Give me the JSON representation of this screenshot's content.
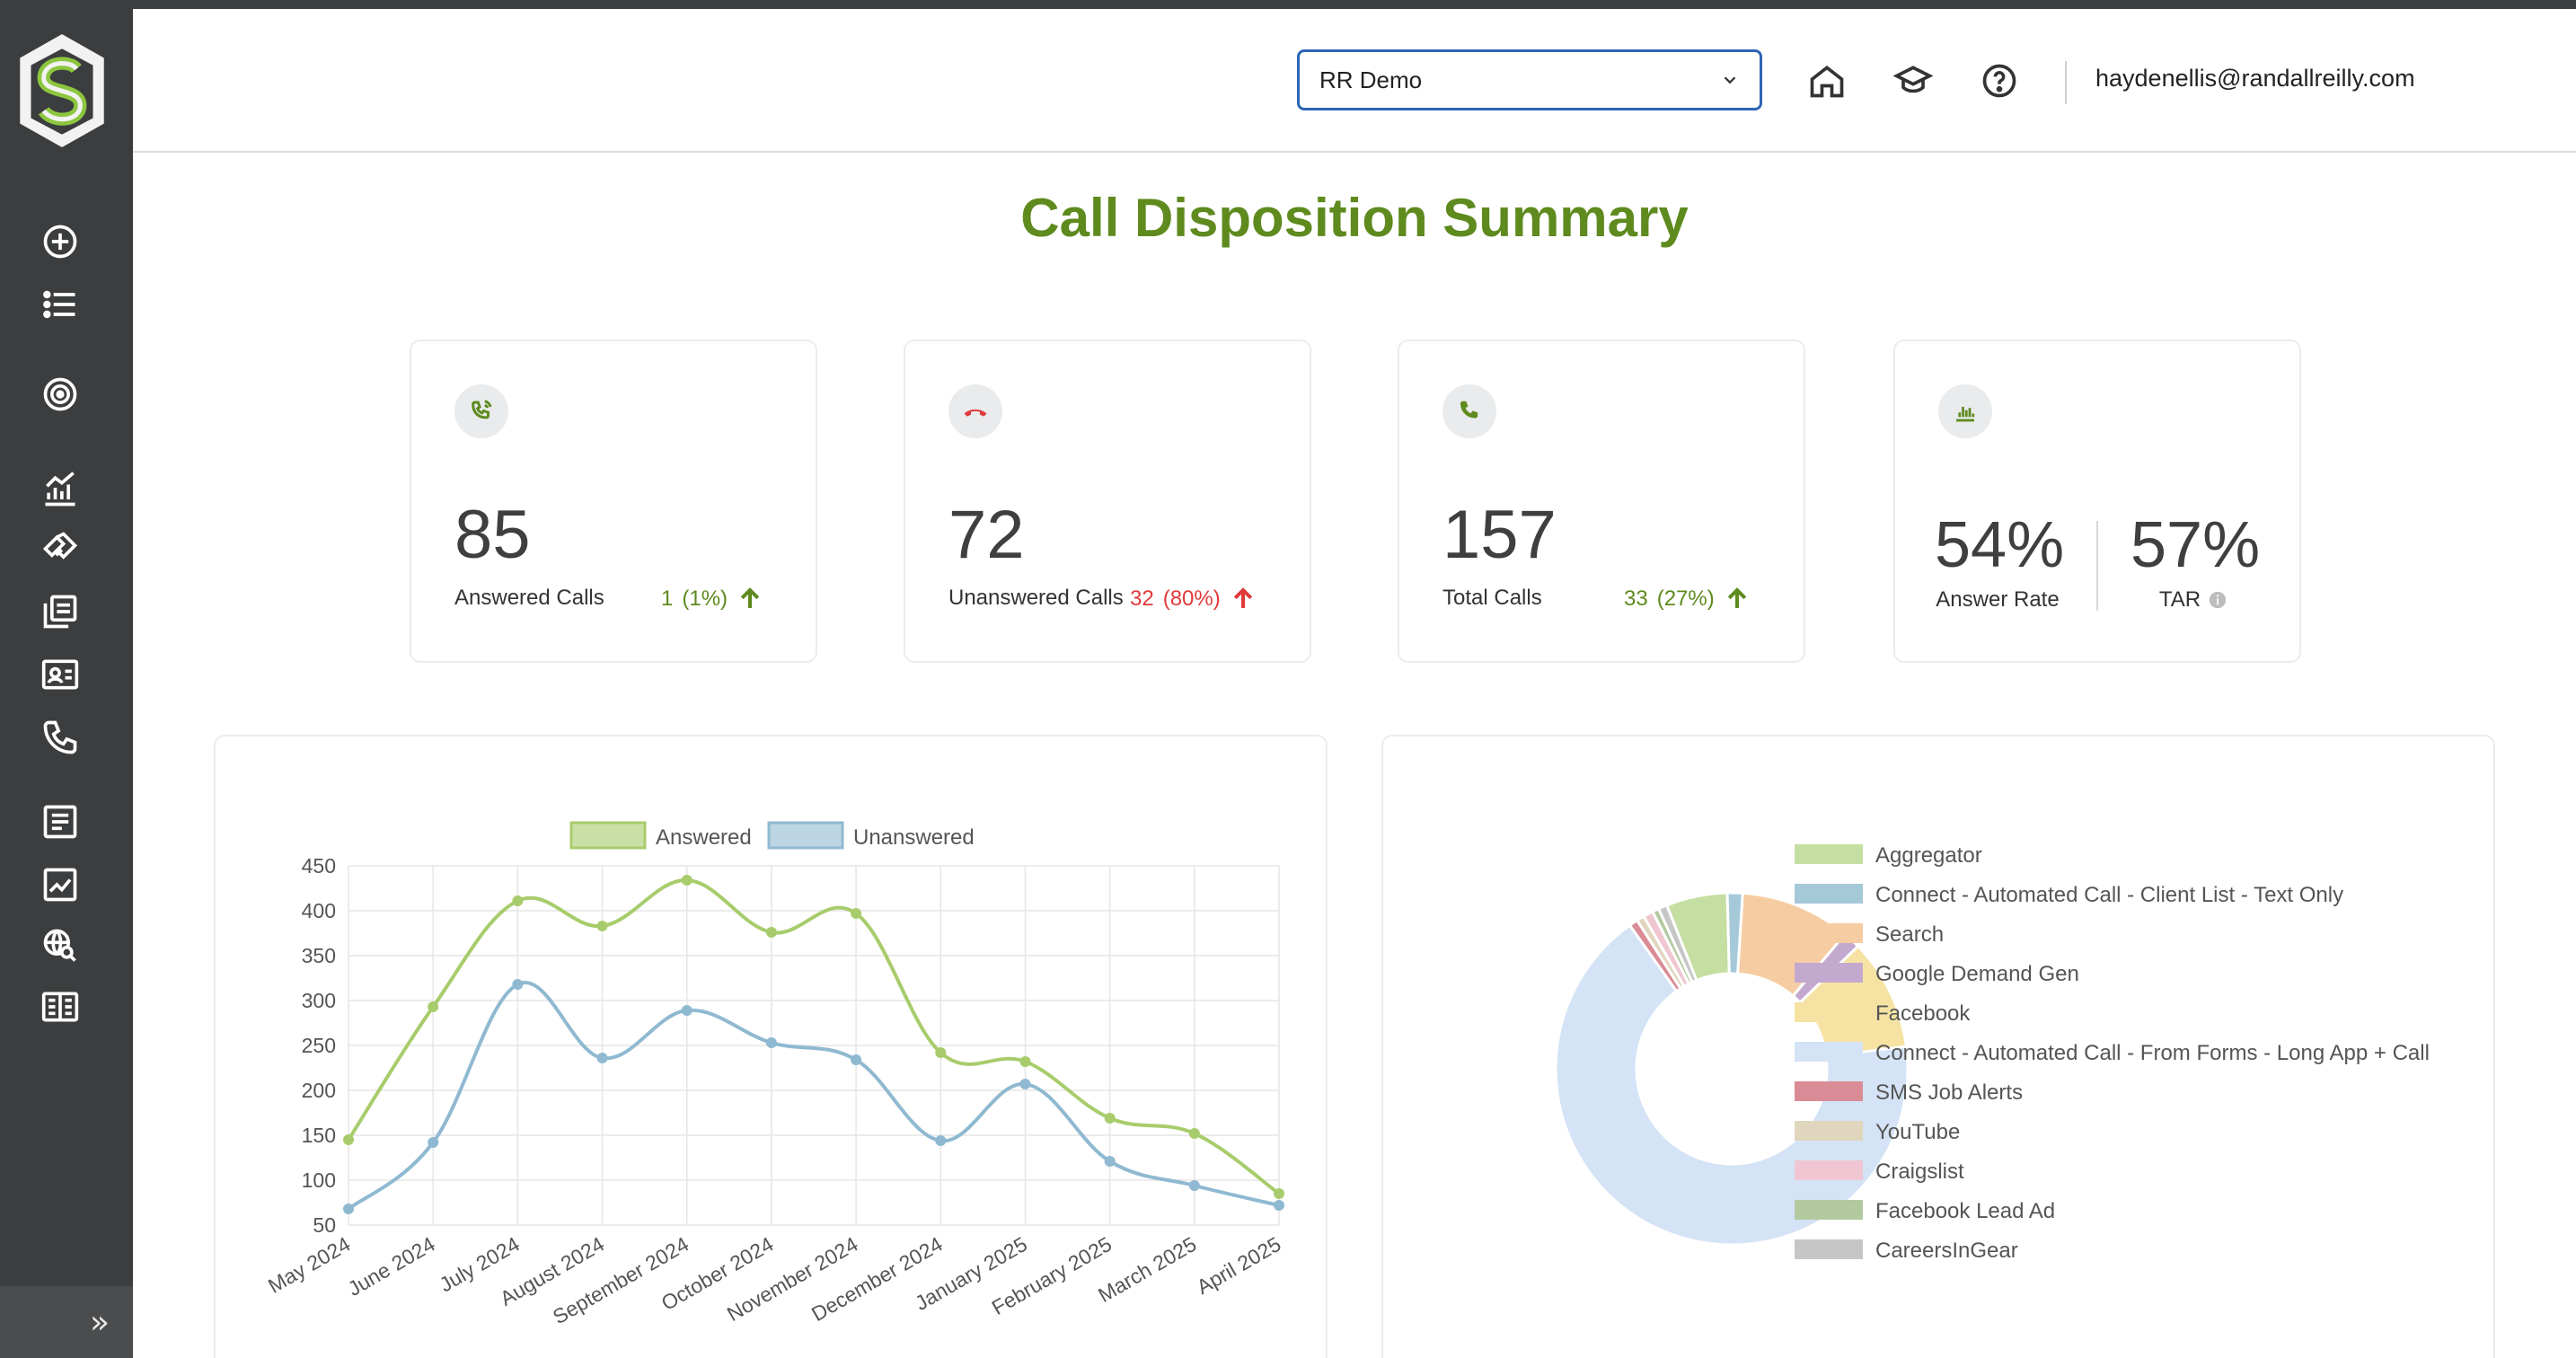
{
  "header": {
    "account_select_value": "RR Demo",
    "user_email": "haydenellis@randallreilly.com"
  },
  "sidebar": {
    "items": [
      {
        "name": "add-circle-icon"
      },
      {
        "name": "list-icon"
      },
      {
        "name": "target-icon"
      },
      {
        "name": "analytics-icon"
      },
      {
        "name": "handshake-icon"
      },
      {
        "name": "copy-pages-icon"
      },
      {
        "name": "contact-card-icon"
      },
      {
        "name": "phone-icon"
      },
      {
        "name": "document-icon"
      },
      {
        "name": "trend-chart-icon"
      },
      {
        "name": "web-search-icon"
      },
      {
        "name": "newspaper-icon"
      }
    ],
    "expand_icon": "»"
  },
  "page": {
    "title": "Call Disposition Summary"
  },
  "stats": {
    "answered": {
      "value": "85",
      "label": "Answered Calls",
      "delta_count": "1",
      "delta_pct": "(1%)"
    },
    "unanswered": {
      "value": "72",
      "label": "Unanswered Calls",
      "delta_count": "32",
      "delta_pct": "(80%)"
    },
    "total": {
      "value": "157",
      "label": "Total Calls",
      "delta_count": "33",
      "delta_pct": "(27%)"
    },
    "rates": {
      "answer_rate_value": "54%",
      "answer_rate_label": "Answer Rate",
      "tar_value": "57%",
      "tar_label": "TAR"
    }
  },
  "colors": {
    "brand_green": "#5e8a1e",
    "sidebar_bg": "#3b3d3e",
    "select_border": "#2d66b4",
    "down_red": "#e03a3a"
  },
  "chart_data": [
    {
      "type": "line",
      "title": "",
      "x": [
        "May 2024",
        "June 2024",
        "July 2024",
        "August 2024",
        "September 2024",
        "October 2024",
        "November 2024",
        "December 2024",
        "January 2025",
        "February 2025",
        "March 2025",
        "April 2025"
      ],
      "series": [
        {
          "name": "Answered",
          "color": "#a8cc6c",
          "values": [
            145,
            293,
            411,
            383,
            434,
            376,
            397,
            242,
            232,
            169,
            152,
            85
          ]
        },
        {
          "name": "Unanswered",
          "color": "#8fb9d1",
          "values": [
            68,
            142,
            318,
            236,
            289,
            253,
            234,
            144,
            207,
            121,
            94,
            72
          ]
        }
      ],
      "ylim": [
        50,
        450
      ],
      "yticks": [
        50,
        100,
        150,
        200,
        250,
        300,
        350,
        400,
        450
      ],
      "grid": true,
      "legend": "top-center"
    },
    {
      "type": "pie",
      "variant": "donut",
      "legend": "right",
      "slices": [
        {
          "label": "Aggregator",
          "value": 5.6,
          "color": "#c5dea2"
        },
        {
          "label": "Connect - Automated Call - Client List - Text Only",
          "value": 1.4,
          "color": "#a6c9da"
        },
        {
          "label": "Search",
          "value": 10.1,
          "color": "#f6cca2"
        },
        {
          "label": "Google Demand Gen",
          "value": 1.6,
          "color": "#c4a9cf"
        },
        {
          "label": "Facebook",
          "value": 10.2,
          "color": "#f6e3a4"
        },
        {
          "label": "Connect - Automated Call - From Forms - Long App + Call",
          "value": 67.0,
          "color": "#d4e3f5"
        },
        {
          "label": "SMS Job Alerts",
          "value": 0.8,
          "color": "#d98c95"
        },
        {
          "label": "YouTube",
          "value": 0.7,
          "color": "#e0d6bd"
        },
        {
          "label": "Craigslist",
          "value": 0.9,
          "color": "#efc6d2"
        },
        {
          "label": "Facebook Lead Ad",
          "value": 0.6,
          "color": "#b3c99f"
        },
        {
          "label": "CareersInGear",
          "value": 0.8,
          "color": "#c6c6c6"
        }
      ]
    }
  ]
}
